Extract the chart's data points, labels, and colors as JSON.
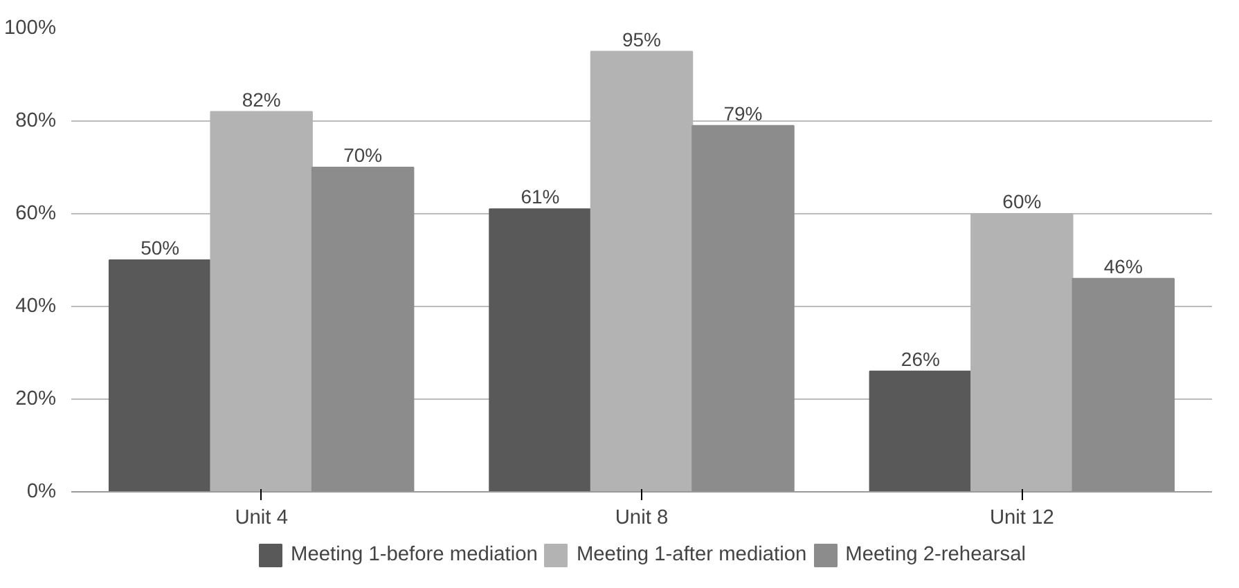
{
  "chart_data": {
    "type": "bar",
    "categories": [
      "Unit 4",
      "Unit 8",
      "Unit 12"
    ],
    "series": [
      {
        "name": "Meeting 1-before mediation",
        "color": "#595959",
        "values": [
          50,
          61,
          26
        ],
        "value_labels": [
          "50%",
          "61%",
          "26%"
        ]
      },
      {
        "name": "Meeting 1-after mediation",
        "color": "#b3b3b3",
        "values": [
          82,
          95,
          60
        ],
        "value_labels": [
          "82%",
          "95%",
          "60%"
        ]
      },
      {
        "name": "Meeting 2-rehearsal",
        "color": "#8c8c8c",
        "values": [
          70,
          79,
          46
        ],
        "value_labels": [
          "70%",
          "79%",
          "46%"
        ]
      }
    ],
    "ylim": [
      0,
      100
    ],
    "yticks": [
      {
        "value": 0,
        "label": "0%"
      },
      {
        "value": 20,
        "label": "20%"
      },
      {
        "value": 40,
        "label": "40%"
      },
      {
        "value": 60,
        "label": "60%"
      },
      {
        "value": 80,
        "label": "80%"
      },
      {
        "value": 100,
        "label": "100%"
      }
    ],
    "grid": "y",
    "legend": "bottom"
  }
}
